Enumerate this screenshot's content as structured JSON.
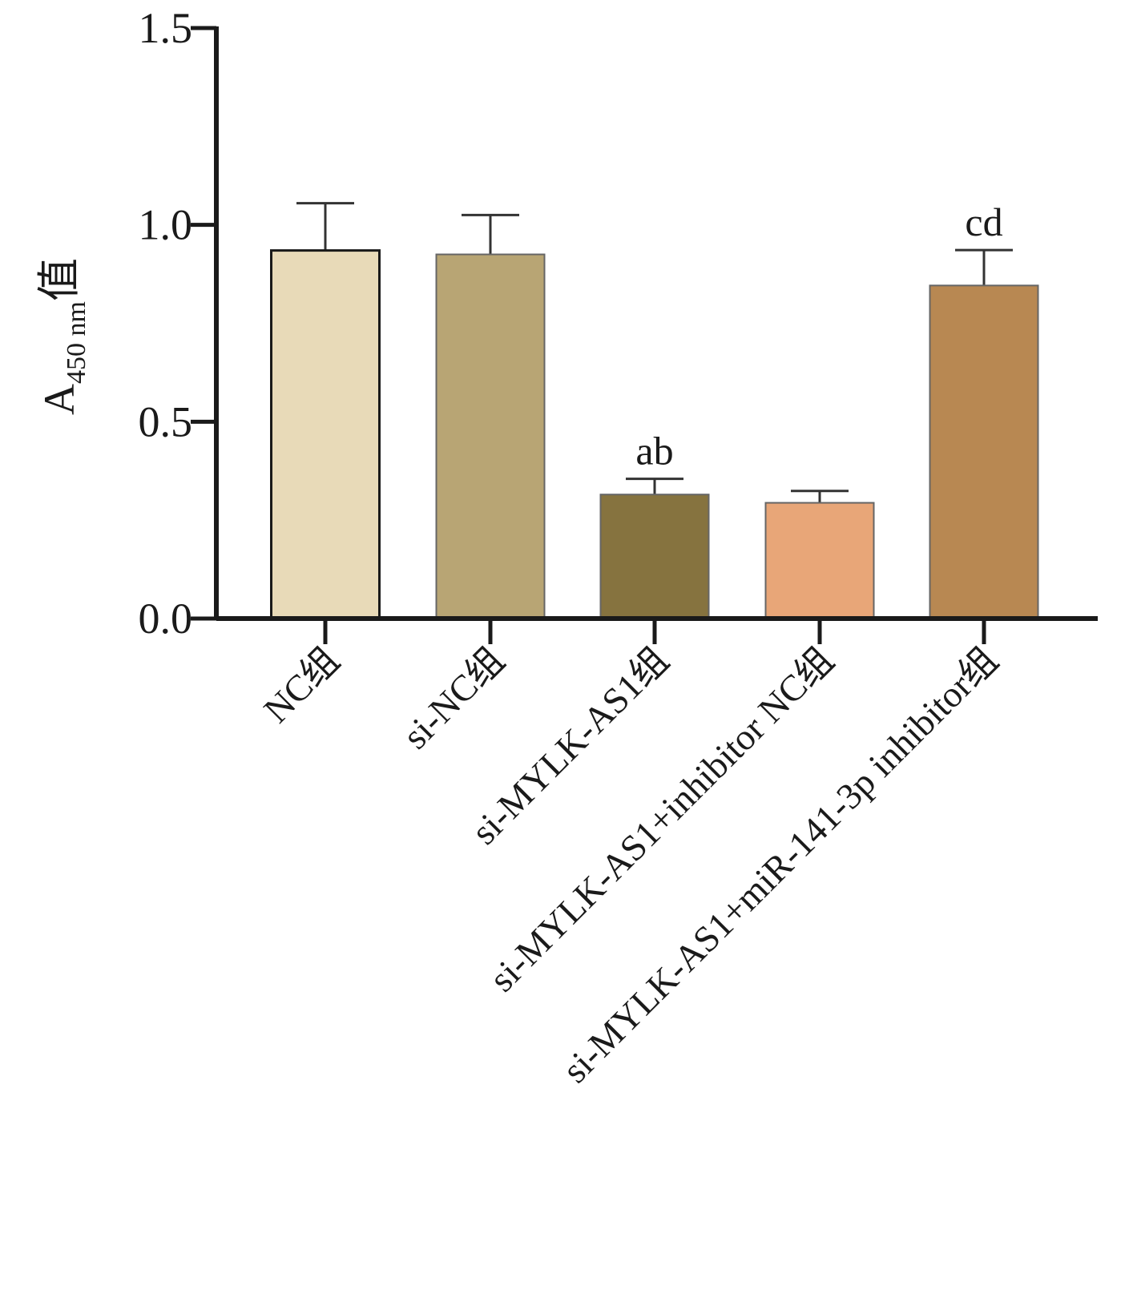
{
  "chart_data": {
    "type": "bar",
    "y_label": {
      "main": "A",
      "sub": "450 nm",
      "suffix": "值"
    },
    "categories": [
      "NC组",
      "si-NC组",
      "si-MYLK-AS1组",
      "si-MYLK-AS1+inhibitor NC组",
      "si-MYLK-AS1+miR-141-3p inhibitor组"
    ],
    "values": [
      0.935,
      0.925,
      0.315,
      0.294,
      0.846
    ],
    "errors": [
      0.12,
      0.1,
      0.04,
      0.03,
      0.09
    ],
    "annotations": [
      null,
      null,
      "ab",
      null,
      "cd"
    ],
    "colors": [
      "#e8dab8",
      "#b8a574",
      "#86733f",
      "#e8a678",
      "#b88852"
    ],
    "ylim": [
      0,
      1.5
    ],
    "yticks": [
      {
        "value": 0,
        "label": "0.0"
      },
      0.5,
      {
        "value": 1,
        "label": "1.0"
      },
      {
        "value": 1.5,
        "label": "1.5"
      }
    ],
    "grid": false
  }
}
